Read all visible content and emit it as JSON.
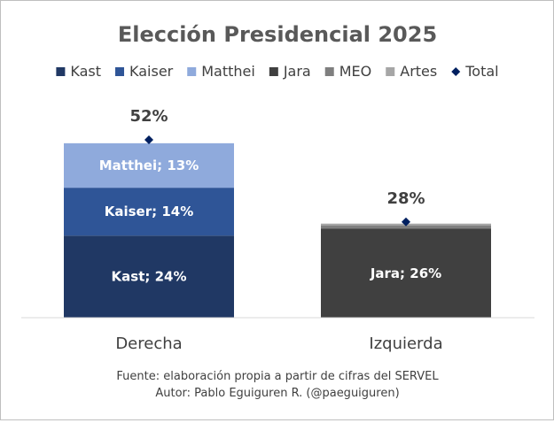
{
  "chart_data": {
    "type": "bar",
    "stacked": true,
    "title": "Elección Presidencial 2025",
    "categories": [
      "Derecha",
      "Izquierda"
    ],
    "ylim": [
      0,
      52
    ],
    "grid": false,
    "legend_position": "top",
    "series": [
      {
        "name": "Kast",
        "values": [
          24,
          0
        ],
        "color": "#203864"
      },
      {
        "name": "Kaiser",
        "values": [
          14,
          0
        ],
        "color": "#2f5597"
      },
      {
        "name": "Matthei",
        "values": [
          13,
          0
        ],
        "color": "#8faadc"
      },
      {
        "name": "Jara",
        "values": [
          0,
          26
        ],
        "color": "#404040"
      },
      {
        "name": "MEO",
        "values": [
          0,
          1
        ],
        "color": "#7f7f7f"
      },
      {
        "name": "Artes",
        "values": [
          0,
          0.5
        ],
        "color": "#a6a6a6"
      }
    ],
    "total": {
      "name": "Total",
      "values": [
        52,
        28
      ],
      "color": "#002060",
      "labels": [
        "52%",
        "28%"
      ]
    },
    "segment_labels": [
      {
        "series": "Kast",
        "category": "Derecha",
        "text": "Kast; 24%"
      },
      {
        "series": "Kaiser",
        "category": "Derecha",
        "text": "Kaiser; 14%"
      },
      {
        "series": "Matthei",
        "category": "Derecha",
        "text": "Matthei; 13%"
      },
      {
        "series": "Jara",
        "category": "Izquierda",
        "text": "Jara; 26%"
      }
    ]
  },
  "footer": {
    "source": "Fuente: elaboración propia a partir de cifras del SERVEL",
    "author": "Autor: Pablo Eguiguren R. (@paeguiguren)"
  }
}
